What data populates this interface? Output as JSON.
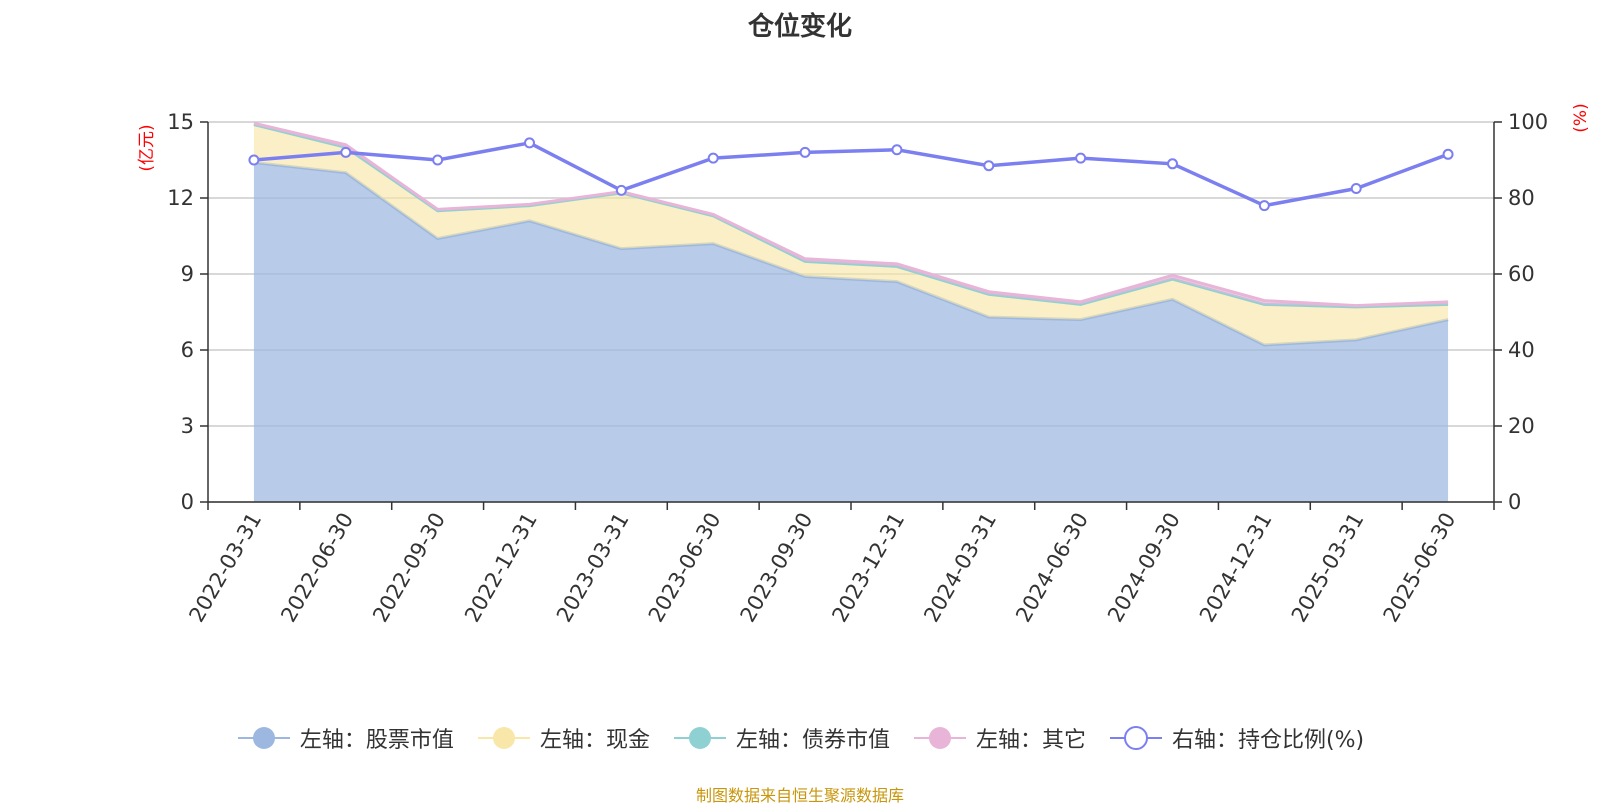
{
  "chart_data": {
    "type": "area",
    "title": "仓位变化",
    "source_note": "制图数据来自恒生聚源数据库",
    "left_unit": "(亿元)",
    "right_unit": "(%)",
    "left_ylim": [
      0,
      15
    ],
    "left_ticks": [
      "0",
      "3",
      "6",
      "9",
      "12",
      "15"
    ],
    "right_ylim": [
      0,
      100
    ],
    "right_ticks": [
      "0",
      "20",
      "40",
      "60",
      "80",
      "100"
    ],
    "categories": [
      "2022-03-31",
      "2022-06-30",
      "2022-09-30",
      "2022-12-31",
      "2023-03-31",
      "2023-06-30",
      "2023-09-30",
      "2023-12-31",
      "2024-03-31",
      "2024-06-30",
      "2024-09-30",
      "2024-12-31",
      "2025-03-31",
      "2025-06-30"
    ],
    "grid": true,
    "legend_position": "bottom",
    "series": [
      {
        "name": "左轴：股票市值",
        "axis": "left",
        "color": "#9db8e0",
        "values": [
          13.4,
          13.0,
          10.4,
          11.1,
          10.0,
          10.2,
          8.9,
          8.7,
          7.3,
          7.2,
          8.0,
          6.2,
          6.4,
          7.2
        ]
      },
      {
        "name": "左轴：现金",
        "axis": "left",
        "color": "#f8e7a8",
        "values": [
          1.5,
          1.0,
          1.1,
          0.6,
          2.2,
          1.1,
          0.6,
          0.6,
          0.9,
          0.6,
          0.8,
          1.6,
          1.3,
          0.6
        ]
      },
      {
        "name": "左轴：债券市值",
        "axis": "left",
        "color": "#8fd1d3",
        "values": [
          0,
          0,
          0,
          0,
          0,
          0,
          0,
          0,
          0,
          0,
          0,
          0,
          0,
          0
        ]
      },
      {
        "name": "左轴：其它",
        "axis": "left",
        "color": "#e8b4d8",
        "values": [
          0.05,
          0.1,
          0.05,
          0.05,
          0.05,
          0.05,
          0.1,
          0.1,
          0.1,
          0.1,
          0.15,
          0.15,
          0.05,
          0.1
        ]
      },
      {
        "name": "右轴：持仓比例(%)",
        "axis": "right",
        "color": "#7b7ff0",
        "values": [
          90,
          92,
          90,
          94.5,
          82,
          90.5,
          92,
          92.7,
          88.5,
          90.5,
          89,
          78,
          82.5,
          91.5
        ]
      }
    ]
  }
}
